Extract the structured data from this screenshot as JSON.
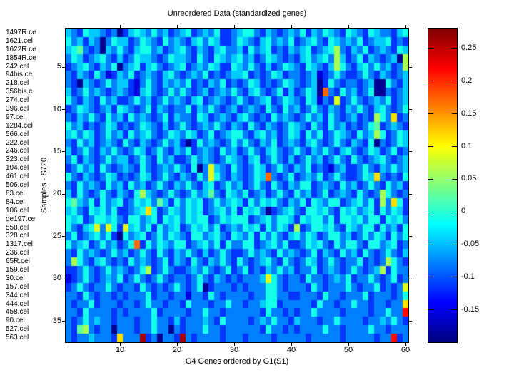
{
  "figure": {
    "title": "Unreordered Data (standardized genes)",
    "xlabel": "G4 Genes ordered by G1(S1)",
    "ylabel": "Samples - S720",
    "background_color": "#ffffff",
    "axis_color": "#000000"
  },
  "chart_data": {
    "type": "heatmap",
    "title": "Unreordered Data (standardized genes)",
    "xlabel": "G4 Genes ordered by G1(S1)",
    "ylabel": "Samples - S720",
    "n_rows": 37,
    "n_cols": 60,
    "row_labels": [
      "1497R.ce",
      "1621.cel",
      "1622R.ce",
      "1854R.ce",
      "242.cel",
      "94bis.ce",
      "218.cel",
      "356bis.c",
      "274.cel",
      "396.cel",
      "97.cel",
      "1284.cel",
      "566.cel",
      "222.cel",
      "246.cel",
      "323.cel",
      "104.cel",
      "461.cel",
      "506.cel",
      "83.cel",
      "84.cel",
      "106.cel",
      "ge197.ce",
      "558.cel",
      "328.cel",
      "1317.cel",
      "236.cel",
      "65R.cel",
      "159.cel",
      "30.cel",
      "157.cel",
      "344.cel",
      "444.cel",
      "458.cel",
      "90.cel",
      "527.cel",
      "563.cel"
    ],
    "x_ticks": [
      10,
      20,
      30,
      40,
      50,
      60
    ],
    "y_ticks": [
      5,
      10,
      15,
      20,
      25,
      30,
      35
    ],
    "colormap": "jet",
    "value_range": [
      -0.2,
      0.28
    ],
    "colorbar_ticks": [
      0.25,
      0.2,
      0.15,
      0.1,
      0.05,
      0,
      -0.05,
      -0.1,
      -0.15
    ],
    "value_map": {
      "a": -0.19,
      "b": -0.155,
      "c": -0.115,
      "d": -0.08,
      "e": -0.045,
      "f": -0.01,
      "g": 0.025,
      "h": 0.06,
      "i": 0.085,
      "j": 0.115,
      "k": 0.17,
      "l": 0.215,
      "m": 0.26
    },
    "matrix_encoded": [
      "edcfeedcdacefedfdecdefcdedfccdeffdcedcdedfcedfedcfedcfeddcef",
      "fdecedadfeecdfedcfdedcefdfeccdfedcefdedfcdefdcfededfcdeefcdc",
      "efgdcdaedfdceffdecdefdcedcefddecfdefcdcedefcdefhdcedfcdedcfe",
      "dfecdefdcecdfeedcdfeedcfdcfedefdecdfedcdcefdefdhecdfcedcdeah",
      "cdefdcedfadefcefdcdefcdedfeccfedfdcecdfedcfedcehfdcefdfdecdh",
      "dcedcfdbcedfcdedcefdcdedfcdcdeefcdcdfecddcdebcdfdccdfdcedcde",
      "dcaedcdfdeecbdfdcededfcdcedfcdcdfecdcdfedcdeacfdcddcdeaafdce",
      "ecdfdedcdedcbefdcdfdfdcdecdedfdcefdcdfcecdfeakdcfdecdfaadcde",
      "fdcedcfdeccdfdecdfdedcefcdedcdfdcdefcdfedcfebdcicdfdcdedfcde",
      "cdfedcdecfedcdfcedcddfcedfdcdecdedcfdcfdecdfdcedcedfdcefdcdf",
      "dcedfdcfdecfdedcdfceddcfecdedcefdcdcfdedcdfdecfdcdecdchfdjcd",
      "fdecdcdfecdcdfedcecdfdcdedfdcedcfdcedcdfedcfdcfdecdcdfgcdedc",
      "efdfecdfdecfdefdcdfedfecdfcdeffdcefdecdfecfdfcdfedcfdehfcdfe",
      "dcfdecdedcfdcedcdfdecacfdedcdfdfdcedfcdedcefdcdfdcedcfadcdfe",
      "ecdfdcedfdcdfecdfdcedfcdedcfdecdfdcefdcdfdcedfdcefdcdfecdfcd",
      "dfcedcdfdeecdfdcfdeccdfdedcdfedcefcdfdcecdfdecdfdcfdcdefdcde",
      "cdfdecfdcdedcfdcdedfdcfadiedcfdcdfecdfdcedfcdcbdeccdfdcedfde",
      "fdcedcdfecdcdfecdfdcedcfdifdcedcdfekdcdfcdedfcdfdccdfejdcdcf",
      "dcfdedcfdecfdecdfdcedfdcefcdfdecdfdcfdcedffcdedcfdecdfdcfdec",
      "ecfdcdfdcedcfhedcdfdcdfdegdcfedfcdecdfdcfdecdfcdedcfdcdhfdcd",
      "fgedfcfdefcdfefdgecfdfefcdfdefecfdfefdcedfcfedffcdefdfchdjfc",
      "efdcfefdfccdefjfcdfedfefcdefdfcfefdacdefdcffefdcfefdefcfdfec",
      "fefcdffefdcffdefcfefdfeffcdfefffcdefdffecfeffdfcffefdffcfefd",
      "fdcefidifciefdfcfdefcdfefdfcdedfefcfdfechcdffefdcfedffcfdecf",
      "dfcdefdfcafdefcdfdfedcffdefdcfedfcfdfdcefdfecdffdecdfdfecfdf",
      "fdefcdfdecdfkcfdfedffcdefdfcfddffcdefdfccdfefdcfdffdcffdefcd",
      "dcfdedcdfdecdfdcfdcedfdcecdfdccdfdedcfdedcdfcedcfdecfdcdfdce",
      "dhfdcefdcdcfdedcdfcedcfdcedfdcfdcdefdcfdcdfecdfdcddfcdcdhfdc",
      "ccdfdcdfdedcdfhcdfdccdedfdcdfcdfcdcedfdecddfcdedcdfdcdehcfdd",
      "bcdfdcdedfcdfdcdfdcddcdfdcedcdcdddeifdcddcfddcdedfcddfdcdfcd",
      "cdfdcddfdcddcfdcdcdfdcdfacdddcdcdddffdcdddcfdcdddfdcddfcdcdi",
      "ddcfdcddcdcdddfcddcddbddcfdcddddcddffddccdddcfddcdddfcdddcdf",
      "dcddfcdddcddcdfddcddcfdddcddfddcddeffcdddddcfddcddfddcddcddj",
      "ddcfddddcdcddddfcddddcddfddcddddddcfddcdcddfddddcddddcddfddl",
      "dcdfdeddcdddcddfddcecdddedcfddddcdedfddcedddcddfddddcddedfdc",
      "dcghdcddadddcddfddadcdddfddcddddddcfddcdcddddfddcddddfddcddd",
      "dcddedddcjdddmcdaddcmdcddddcdddcddddcdddddcdddddcdddddcddlcd"
    ]
  }
}
